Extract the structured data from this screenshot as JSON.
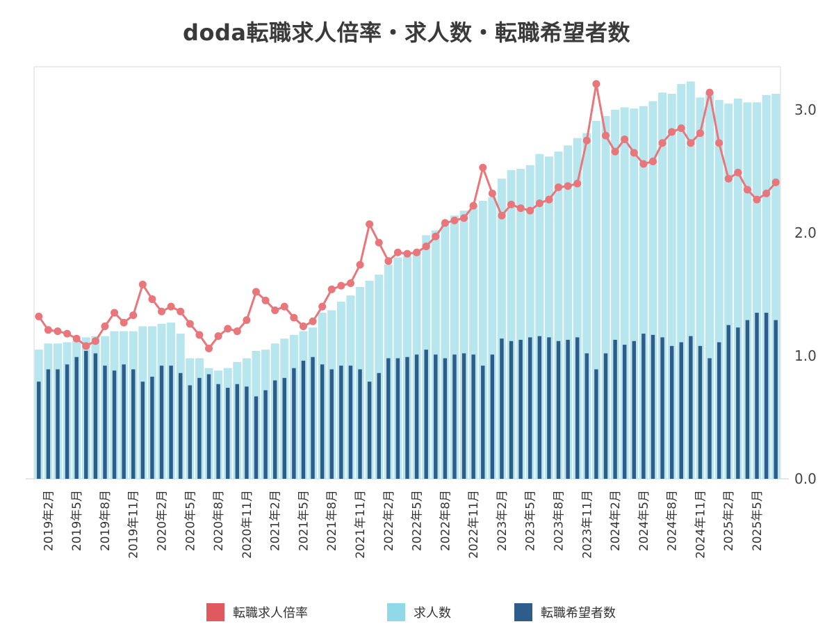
{
  "chart_data": {
    "type": "bar",
    "title": "doda転職求人倍率・求人数・転職希望者数",
    "categories": [
      "2019年1月",
      "2019年2月",
      "2019年3月",
      "2019年4月",
      "2019年5月",
      "2019年6月",
      "2019年7月",
      "2019年8月",
      "2019年9月",
      "2019年10月",
      "2019年11月",
      "2019年12月",
      "2020年1月",
      "2020年2月",
      "2020年3月",
      "2020年4月",
      "2020年5月",
      "2020年6月",
      "2020年7月",
      "2020年8月",
      "2020年9月",
      "2020年10月",
      "2020年11月",
      "2020年12月",
      "2021年1月",
      "2021年2月",
      "2021年3月",
      "2021年4月",
      "2021年5月",
      "2021年6月",
      "2021年7月",
      "2021年8月",
      "2021年9月",
      "2021年10月",
      "2021年11月",
      "2021年12月",
      "2022年1月",
      "2022年2月",
      "2022年3月",
      "2022年4月",
      "2022年5月",
      "2022年6月",
      "2022年7月",
      "2022年8月",
      "2022年9月",
      "2022年10月",
      "2022年11月",
      "2022年12月",
      "2023年1月",
      "2023年2月",
      "2023年3月",
      "2023年4月",
      "2023年5月",
      "2023年6月",
      "2023年7月",
      "2023年8月",
      "2023年9月",
      "2023年10月",
      "2023年11月",
      "2023年12月",
      "2024年1月",
      "2024年2月",
      "2024年3月",
      "2024年4月",
      "2024年5月",
      "2024年6月",
      "2024年7月",
      "2024年8月",
      "2024年9月",
      "2024年10月",
      "2024年11月",
      "2024年12月",
      "2025年1月",
      "2025年2月",
      "2025年3月",
      "2025年4月",
      "2025年5月",
      "2025年6月",
      "2025年7月"
    ],
    "tick_labels": [
      "2019年2月",
      "2019年5月",
      "2019年8月",
      "2019年11月",
      "2020年2月",
      "2020年5月",
      "2020年8月",
      "2020年11月",
      "2021年2月",
      "2021年5月",
      "2021年8月",
      "2021年11月",
      "2022年2月",
      "2022年5月",
      "2022年8月",
      "2022年11月",
      "2023年2月",
      "2023年5月",
      "2023年8月",
      "2023年11月",
      "2024年2月",
      "2024年5月",
      "2024年8月",
      "2024年11月",
      "2025年2月",
      "2025年5月"
    ],
    "y_ticks": [
      "0.0",
      "1.0",
      "2.0",
      "3.0"
    ],
    "ylim": [
      0,
      3.35
    ],
    "legend_position": "bottom",
    "grid": false,
    "series": [
      {
        "name": "転職求人倍率",
        "kind": "line",
        "color": "#e8767a",
        "values": [
          1.32,
          1.21,
          1.2,
          1.18,
          1.14,
          1.08,
          1.12,
          1.24,
          1.35,
          1.27,
          1.33,
          1.58,
          1.46,
          1.36,
          1.4,
          1.36,
          1.26,
          1.17,
          1.06,
          1.16,
          1.22,
          1.2,
          1.29,
          1.52,
          1.45,
          1.37,
          1.4,
          1.31,
          1.24,
          1.28,
          1.4,
          1.54,
          1.57,
          1.59,
          1.74,
          2.07,
          1.92,
          1.77,
          1.84,
          1.83,
          1.84,
          1.89,
          1.97,
          2.08,
          2.1,
          2.12,
          2.22,
          2.53,
          2.32,
          2.14,
          2.23,
          2.2,
          2.18,
          2.24,
          2.27,
          2.37,
          2.38,
          2.4,
          2.75,
          3.21,
          2.79,
          2.66,
          2.76,
          2.65,
          2.56,
          2.58,
          2.73,
          2.82,
          2.85,
          2.73,
          2.81,
          3.14,
          2.73,
          2.44,
          2.49,
          2.35,
          2.27,
          2.32,
          2.41
        ]
      },
      {
        "name": "求人数",
        "kind": "bar",
        "color": "#b7e6ee",
        "values": [
          1.05,
          1.1,
          1.1,
          1.11,
          1.12,
          1.15,
          1.16,
          1.16,
          1.2,
          1.2,
          1.2,
          1.24,
          1.24,
          1.26,
          1.27,
          1.18,
          0.98,
          0.98,
          0.9,
          0.88,
          0.9,
          0.95,
          0.98,
          1.04,
          1.05,
          1.1,
          1.14,
          1.17,
          1.2,
          1.23,
          1.35,
          1.37,
          1.44,
          1.49,
          1.56,
          1.61,
          1.66,
          1.74,
          1.8,
          1.81,
          1.84,
          1.98,
          2.02,
          2.08,
          2.14,
          2.18,
          2.22,
          2.26,
          2.29,
          2.44,
          2.51,
          2.52,
          2.55,
          2.64,
          2.62,
          2.66,
          2.71,
          2.77,
          2.81,
          2.91,
          2.95,
          3.0,
          3.02,
          3.01,
          3.03,
          3.07,
          3.14,
          3.13,
          3.21,
          3.23,
          3.1,
          3.14,
          3.08,
          3.05,
          3.09,
          3.06,
          3.06,
          3.12,
          3.13
        ]
      },
      {
        "name": "転職希望者数",
        "kind": "bar",
        "color": "#2e5d8c",
        "values": [
          0.79,
          0.89,
          0.89,
          0.93,
          0.99,
          1.04,
          1.02,
          0.92,
          0.88,
          0.93,
          0.89,
          0.79,
          0.83,
          0.92,
          0.92,
          0.86,
          0.76,
          0.82,
          0.85,
          0.77,
          0.74,
          0.77,
          0.75,
          0.67,
          0.72,
          0.8,
          0.82,
          0.9,
          0.96,
          0.99,
          0.93,
          0.89,
          0.92,
          0.92,
          0.89,
          0.79,
          0.86,
          0.98,
          0.98,
          0.99,
          1.01,
          1.05,
          1.01,
          0.98,
          1.01,
          1.02,
          1.01,
          0.92,
          1.01,
          1.14,
          1.12,
          1.13,
          1.15,
          1.16,
          1.15,
          1.12,
          1.13,
          1.15,
          1.02,
          0.89,
          1.02,
          1.13,
          1.09,
          1.12,
          1.18,
          1.17,
          1.15,
          1.08,
          1.11,
          1.16,
          1.08,
          0.98,
          1.11,
          1.25,
          1.23,
          1.29,
          1.35,
          1.35,
          1.29
        ]
      }
    ]
  }
}
